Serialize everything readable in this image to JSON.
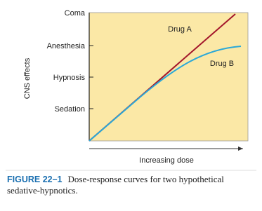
{
  "figure": {
    "y_axis_label": "CNS effects",
    "x_axis_label": "Increasing dose",
    "levels": [
      "Coma",
      "Anesthesia",
      "Hypnosis",
      "Sedation"
    ],
    "curves": [
      {
        "label": "Drug A"
      },
      {
        "label": "Drug B"
      }
    ]
  },
  "caption": {
    "label": "FIGURE 22–1",
    "lines": [
      "Dose-response curves for two hypothetical",
      "sedative-hypnotics."
    ]
  }
}
